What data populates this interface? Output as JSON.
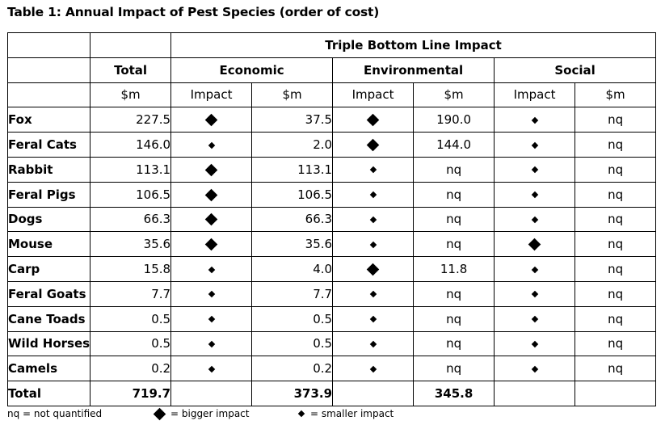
{
  "title": "Table 1: Annual Impact of Pest Species (order of cost)",
  "header": {
    "tbl": "Triple Bottom Line Impact",
    "total": "Total",
    "economic": "Economic",
    "environmental": "Environmental",
    "social": "Social",
    "unit_m": "$m",
    "impact": "Impact"
  },
  "rows": [
    {
      "name": "Fox",
      "total": "227.5",
      "eco_impact": "big",
      "eco_m": "37.5",
      "env_impact": "big",
      "env_m": "190.0",
      "soc_impact": "small",
      "soc_m": "nq"
    },
    {
      "name": "Feral Cats",
      "total": "146.0",
      "eco_impact": "small",
      "eco_m": "2.0",
      "env_impact": "big",
      "env_m": "144.0",
      "soc_impact": "small",
      "soc_m": "nq"
    },
    {
      "name": "Rabbit",
      "total": "113.1",
      "eco_impact": "big",
      "eco_m": "113.1",
      "env_impact": "small",
      "env_m": "nq",
      "soc_impact": "small",
      "soc_m": "nq"
    },
    {
      "name": "Feral Pigs",
      "total": "106.5",
      "eco_impact": "big",
      "eco_m": "106.5",
      "env_impact": "small",
      "env_m": "nq",
      "soc_impact": "small",
      "soc_m": "nq"
    },
    {
      "name": "Dogs",
      "total": "66.3",
      "eco_impact": "big",
      "eco_m": "66.3",
      "env_impact": "small",
      "env_m": "nq",
      "soc_impact": "small",
      "soc_m": "nq"
    },
    {
      "name": "Mouse",
      "total": "35.6",
      "eco_impact": "big",
      "eco_m": "35.6",
      "env_impact": "small",
      "env_m": "nq",
      "soc_impact": "big",
      "soc_m": "nq"
    },
    {
      "name": "Carp",
      "total": "15.8",
      "eco_impact": "small",
      "eco_m": "4.0",
      "env_impact": "big",
      "env_m": "11.8",
      "soc_impact": "small",
      "soc_m": "nq"
    },
    {
      "name": "Feral Goats",
      "total": "7.7",
      "eco_impact": "small",
      "eco_m": "7.7",
      "env_impact": "small",
      "env_m": "nq",
      "soc_impact": "small",
      "soc_m": "nq"
    },
    {
      "name": "Cane Toads",
      "total": "0.5",
      "eco_impact": "small",
      "eco_m": "0.5",
      "env_impact": "small",
      "env_m": "nq",
      "soc_impact": "small",
      "soc_m": "nq"
    },
    {
      "name": "Wild Horses",
      "total": "0.5",
      "eco_impact": "small",
      "eco_m": "0.5",
      "env_impact": "small",
      "env_m": "nq",
      "soc_impact": "small",
      "soc_m": "nq"
    },
    {
      "name": "Camels",
      "total": "0.2",
      "eco_impact": "small",
      "eco_m": "0.2",
      "env_impact": "small",
      "env_m": "nq",
      "soc_impact": "small",
      "soc_m": "nq"
    }
  ],
  "total_row": {
    "label": "Total",
    "total": "719.7",
    "eco_m": "373.9",
    "env_m": "345.8"
  },
  "legend": {
    "nq": "nq = not quantified",
    "big": "= bigger impact",
    "small": "= smaller impact"
  },
  "icons": {
    "big": "large-diamond-icon",
    "small": "small-diamond-icon"
  }
}
